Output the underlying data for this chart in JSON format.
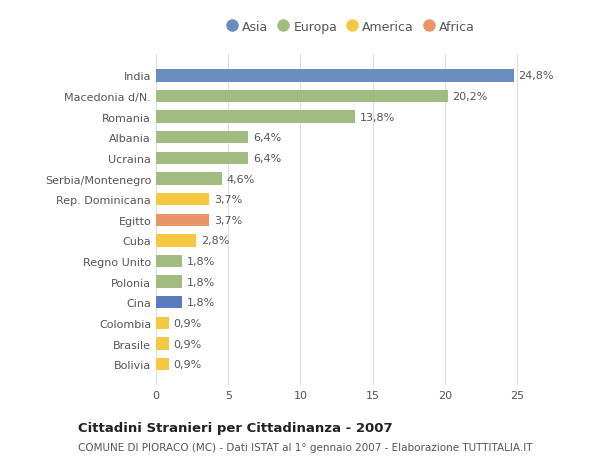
{
  "categories": [
    "India",
    "Macedonia d/N.",
    "Romania",
    "Albania",
    "Ucraina",
    "Serbia/Montenegro",
    "Rep. Dominicana",
    "Egitto",
    "Cuba",
    "Regno Unito",
    "Polonia",
    "Cina",
    "Colombia",
    "Brasile",
    "Bolivia"
  ],
  "values": [
    24.8,
    20.2,
    13.8,
    6.4,
    6.4,
    4.6,
    3.7,
    3.7,
    2.8,
    1.8,
    1.8,
    1.8,
    0.9,
    0.9,
    0.9
  ],
  "labels": [
    "24,8%",
    "20,2%",
    "13,8%",
    "6,4%",
    "6,4%",
    "4,6%",
    "3,7%",
    "3,7%",
    "2,8%",
    "1,8%",
    "1,8%",
    "1,8%",
    "0,9%",
    "0,9%",
    "0,9%"
  ],
  "colors": [
    "#6b8cbe",
    "#a2bb80",
    "#a2bb80",
    "#a2bb80",
    "#a2bb80",
    "#a2bb80",
    "#f5c842",
    "#e8956a",
    "#f5c842",
    "#a2bb80",
    "#a2bb80",
    "#5b7bbf",
    "#f5c842",
    "#f5c842",
    "#f5c842"
  ],
  "legend": [
    {
      "label": "Asia",
      "color": "#6b8cbe"
    },
    {
      "label": "Europa",
      "color": "#a2bb80"
    },
    {
      "label": "America",
      "color": "#f5c842"
    },
    {
      "label": "Africa",
      "color": "#e8956a"
    }
  ],
  "xlim": [
    0,
    27
  ],
  "xticks": [
    0,
    5,
    10,
    15,
    20,
    25
  ],
  "title_bold": "Cittadini Stranieri per Cittadinanza - 2007",
  "subtitle": "COMUNE DI PIORACO (MC) - Dati ISTAT al 1° gennaio 2007 - Elaborazione TUTTITALIA.IT",
  "fig_bg_color": "#ffffff",
  "plot_bg_color": "#ffffff",
  "grid_color": "#dddddd",
  "bar_height": 0.6,
  "label_fontsize": 8.0,
  "tick_fontsize": 8.0,
  "title_fontsize": 9.5,
  "subtitle_fontsize": 7.5,
  "legend_fontsize": 9.0
}
